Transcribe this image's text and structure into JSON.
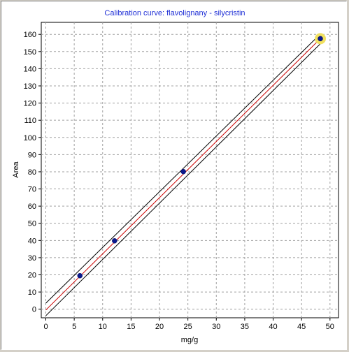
{
  "colors": {
    "title": "#1f2fd6",
    "regression": "#cc0000",
    "confidence": "#000000",
    "point": "#0a1a8c",
    "highlight": "#f0e060",
    "grid": "#a0a0a0"
  },
  "chart_data": {
    "type": "scatter",
    "title": "Calibration curve: flavolignany - silycristin",
    "xlabel": "mg/g",
    "ylabel": "Area",
    "xlim": [
      -0.8,
      51.5
    ],
    "ylim": [
      -5,
      167
    ],
    "xticks": [
      0,
      5,
      10,
      15,
      20,
      25,
      30,
      35,
      40,
      45,
      50
    ],
    "yticks": [
      0,
      10,
      20,
      30,
      40,
      50,
      60,
      70,
      80,
      90,
      100,
      110,
      120,
      130,
      140,
      150,
      160
    ],
    "grid": true,
    "points": [
      {
        "x": 6.0,
        "y": 19.5
      },
      {
        "x": 12.1,
        "y": 39.8
      },
      {
        "x": 24.2,
        "y": 80.1
      },
      {
        "x": 48.3,
        "y": 157.5,
        "highlighted": true
      }
    ],
    "regression_line": {
      "x": [
        0,
        48.3
      ],
      "y": [
        -0.5,
        157.5
      ]
    },
    "confidence_band": {
      "upper": [
        {
          "x": 0,
          "y": 3.5
        },
        {
          "x": 48.3,
          "y": 160.2
        }
      ],
      "lower": [
        {
          "x": 0,
          "y": -3.8
        },
        {
          "x": 48.3,
          "y": 154.5
        }
      ]
    }
  }
}
